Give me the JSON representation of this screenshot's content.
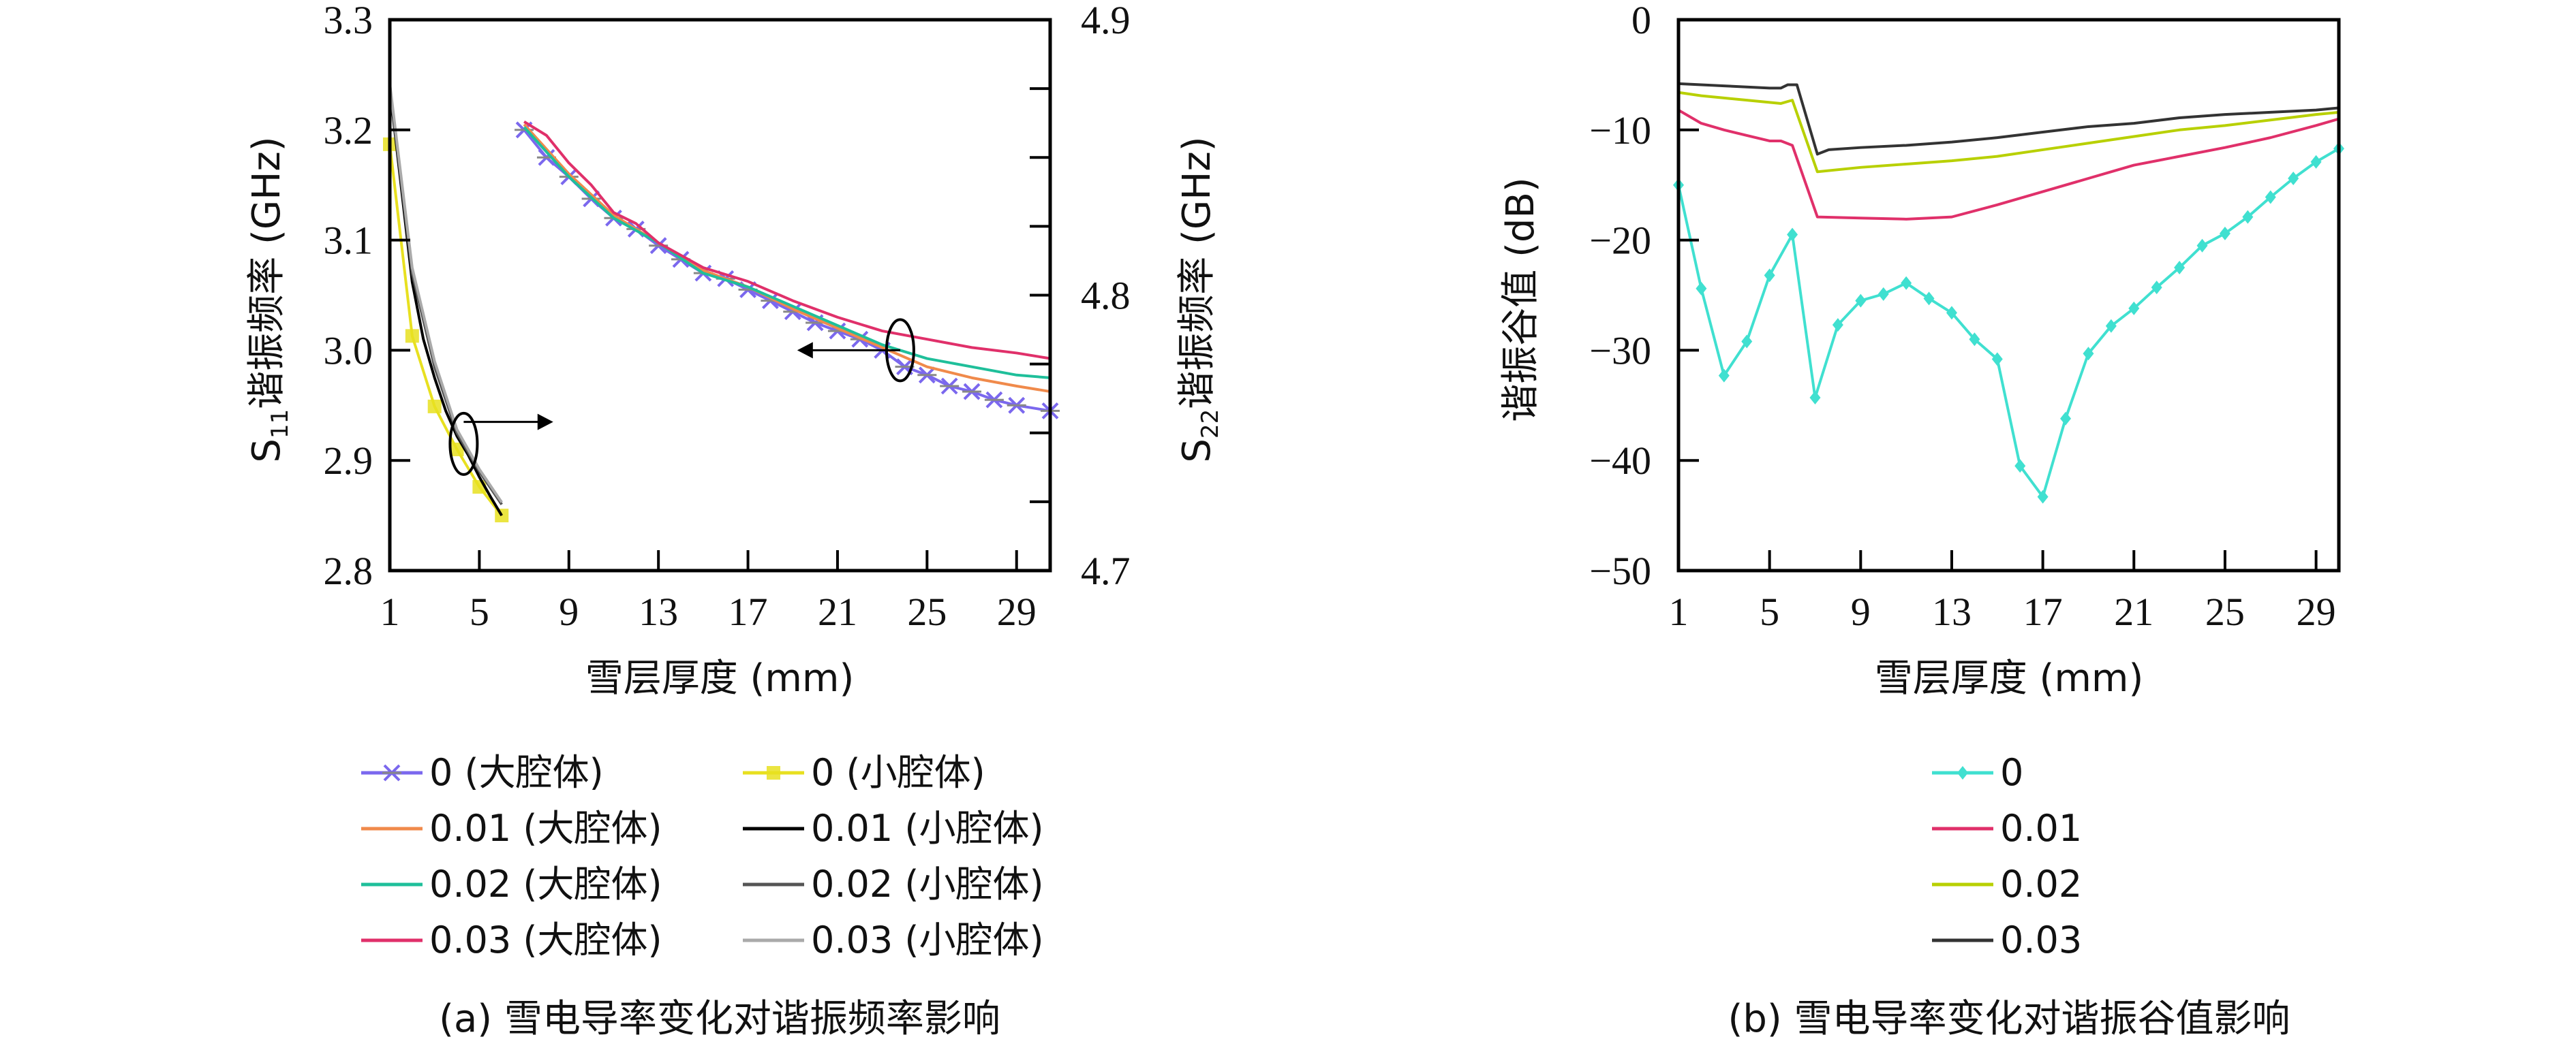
{
  "chart_data": [
    {
      "id": "a",
      "type": "line",
      "caption": "(a) 雪电导率变化对谐振频率影响",
      "xlabel": "雪层厚度 (mm)",
      "ylabel_left": "S11谐振频率 (GHz)",
      "ylabel_left_main": "S",
      "ylabel_left_sub": "11",
      "ylabel_left_rest": "谐振频率 (GHz)",
      "ylabel_right": "S22谐振频率 (GHz)",
      "ylabel_right_main": "S",
      "ylabel_right_sub": "22",
      "ylabel_right_rest": "谐振频率 (GHz)",
      "xlim": [
        1,
        30.5
      ],
      "ylim_left": [
        2.8,
        3.3
      ],
      "ylim_right": [
        4.7,
        4.9
      ],
      "xticks": [
        1,
        5,
        9,
        13,
        17,
        21,
        25,
        29
      ],
      "yticks_left": [
        "2.8",
        "2.9",
        "3.0",
        "3.1",
        "3.2",
        "3.3"
      ],
      "yticks_right": [
        "4.7",
        "4.8",
        "4.9"
      ],
      "legend_position": "bottom",
      "annotations": [
        {
          "type": "ellipse-arrow",
          "target": "small-cavity curves",
          "arrow_direction": "right",
          "meaning": "uses right axis"
        },
        {
          "type": "ellipse-arrow",
          "target": "large-cavity curves",
          "arrow_direction": "left",
          "meaning": "uses left axis"
        }
      ],
      "series": [
        {
          "name": "0 (大腔体)",
          "axis": "right",
          "color": "#7b68ee",
          "marker": "x",
          "x": [
            7,
            8,
            9,
            10,
            11,
            12,
            13,
            14,
            15,
            16,
            17,
            18,
            19,
            20,
            21,
            22,
            23,
            24,
            25,
            26,
            27,
            28,
            29,
            30.5
          ],
          "y": [
            4.86,
            4.85,
            4.843,
            4.835,
            4.828,
            4.824,
            4.818,
            4.813,
            4.808,
            4.806,
            4.802,
            4.798,
            4.794,
            4.79,
            4.787,
            4.784,
            4.78,
            4.774,
            4.771,
            4.767,
            4.765,
            4.762,
            4.76,
            4.758
          ]
        },
        {
          "name": "0.01 (大腔体)",
          "axis": "right",
          "color": "#f08a4b",
          "marker": "none",
          "x": [
            7,
            9,
            11,
            13,
            15,
            17,
            19,
            21,
            23,
            25,
            27,
            29,
            30.5
          ],
          "y": [
            4.862,
            4.844,
            4.829,
            4.819,
            4.809,
            4.803,
            4.795,
            4.788,
            4.781,
            4.774,
            4.77,
            4.767,
            4.765
          ]
        },
        {
          "name": "0.02 (大腔体)",
          "axis": "right",
          "color": "#1fbf9a",
          "marker": "none",
          "x": [
            7,
            9,
            11,
            13,
            15,
            17,
            19,
            21,
            23,
            25,
            27,
            29,
            30.5
          ],
          "y": [
            4.861,
            4.843,
            4.828,
            4.819,
            4.808,
            4.803,
            4.796,
            4.789,
            4.782,
            4.777,
            4.774,
            4.771,
            4.77
          ]
        },
        {
          "name": "0.03 (大腔体)",
          "axis": "right",
          "color": "#e0306a",
          "marker": "none",
          "x": [
            7,
            8,
            9,
            10,
            11,
            12,
            13,
            15,
            17,
            19,
            21,
            23,
            25,
            27,
            29,
            30.5
          ],
          "y": [
            4.863,
            4.858,
            4.848,
            4.84,
            4.83,
            4.826,
            4.819,
            4.81,
            4.805,
            4.798,
            4.792,
            4.787,
            4.784,
            4.781,
            4.779,
            4.777
          ]
        },
        {
          "name": "0 (小腔体)",
          "axis": "left",
          "color": "#e8e020",
          "marker": "square",
          "x": [
            1,
            2,
            3,
            4,
            5,
            6
          ],
          "y": [
            3.187,
            3.013,
            2.949,
            2.91,
            2.876,
            2.85
          ]
        },
        {
          "name": "0.01 (小腔体)",
          "axis": "left",
          "color": "#000000",
          "marker": "none",
          "x": [
            1,
            1.5,
            2,
            2.5,
            3,
            3.5,
            4,
            4.5,
            5,
            5.5,
            6
          ],
          "y": [
            3.238,
            3.15,
            3.062,
            3.01,
            2.975,
            2.945,
            2.922,
            2.905,
            2.885,
            2.867,
            2.85
          ]
        },
        {
          "name": "0.02 (小腔体)",
          "axis": "left",
          "color": "#555555",
          "marker": "none",
          "x": [
            1,
            2,
            3,
            4,
            5,
            6
          ],
          "y": [
            3.24,
            3.07,
            2.985,
            2.925,
            2.89,
            2.86
          ]
        },
        {
          "name": "0.03 (小腔体)",
          "axis": "left",
          "color": "#aaaaaa",
          "marker": "none",
          "x": [
            1,
            2,
            3,
            4,
            5,
            6
          ],
          "y": [
            3.242,
            3.075,
            2.99,
            2.928,
            2.892,
            2.862
          ]
        }
      ]
    },
    {
      "id": "b",
      "type": "line",
      "caption": "(b) 雪电导率变化对谐振谷值影响",
      "xlabel": "雪层厚度 (mm)",
      "ylabel": "谐振谷值 (dB)",
      "xlim": [
        1,
        30
      ],
      "ylim": [
        -50,
        0
      ],
      "xticks": [
        1,
        5,
        9,
        13,
        17,
        21,
        25,
        29
      ],
      "yticks": [
        "-50",
        "-40",
        "-30",
        "-20",
        "-10",
        "0"
      ],
      "legend_position": "bottom",
      "series": [
        {
          "name": "0",
          "color": "#40e0d0",
          "marker": "diamond",
          "x": [
            1,
            2,
            3,
            4,
            5,
            6,
            7,
            8,
            9,
            10,
            11,
            12,
            13,
            14,
            15,
            16,
            17,
            18,
            19,
            20,
            21,
            22,
            23,
            24,
            25,
            26,
            27,
            28,
            29,
            30
          ],
          "y": [
            -15.0,
            -24.4,
            -32.3,
            -29.2,
            -23.2,
            -19.5,
            -34.3,
            -27.7,
            -25.5,
            -24.9,
            -23.9,
            -25.3,
            -26.6,
            -29.0,
            -30.8,
            -40.5,
            -43.3,
            -36.2,
            -30.3,
            -27.8,
            -26.2,
            -24.3,
            -22.5,
            -20.5,
            -19.4,
            -17.9,
            -16.1,
            -14.4,
            -12.9,
            -11.7
          ]
        },
        {
          "name": "0.01",
          "color": "#e0306a",
          "marker": "none",
          "x": [
            1,
            2,
            3,
            4,
            5,
            5.5,
            6,
            7.1,
            9,
            11,
            13,
            15,
            17,
            19,
            21,
            23,
            25,
            27,
            29,
            30
          ],
          "y": [
            -8.2,
            -9.4,
            -10.0,
            -10.5,
            -11.0,
            -11.0,
            -11.4,
            -17.9,
            -18.0,
            -18.1,
            -17.9,
            -16.8,
            -15.6,
            -14.4,
            -13.2,
            -12.4,
            -11.6,
            -10.7,
            -9.6,
            -9.0
          ]
        },
        {
          "name": "0.02",
          "color": "#b8d000",
          "marker": "none",
          "x": [
            1,
            2,
            3,
            4,
            5,
            5.5,
            6,
            7.1,
            9,
            11,
            13,
            15,
            17,
            19,
            21,
            23,
            25,
            27,
            29,
            30
          ],
          "y": [
            -6.6,
            -6.9,
            -7.1,
            -7.3,
            -7.5,
            -7.6,
            -7.3,
            -13.8,
            -13.4,
            -13.1,
            -12.8,
            -12.4,
            -11.8,
            -11.2,
            -10.6,
            -10.0,
            -9.6,
            -9.1,
            -8.6,
            -8.4
          ]
        },
        {
          "name": "0.03",
          "color": "#333333",
          "marker": "none",
          "x": [
            1,
            2,
            3,
            4,
            5,
            5.5,
            5.8,
            6.2,
            7.1,
            7.6,
            9,
            11,
            13,
            15,
            17,
            19,
            21,
            23,
            25,
            27,
            29,
            30
          ],
          "y": [
            -5.8,
            -5.9,
            -6.0,
            -6.1,
            -6.2,
            -6.2,
            -5.9,
            -5.9,
            -12.2,
            -11.8,
            -11.6,
            -11.4,
            -11.1,
            -10.7,
            -10.2,
            -9.7,
            -9.4,
            -8.9,
            -8.6,
            -8.4,
            -8.2,
            -8.0
          ]
        }
      ]
    }
  ]
}
